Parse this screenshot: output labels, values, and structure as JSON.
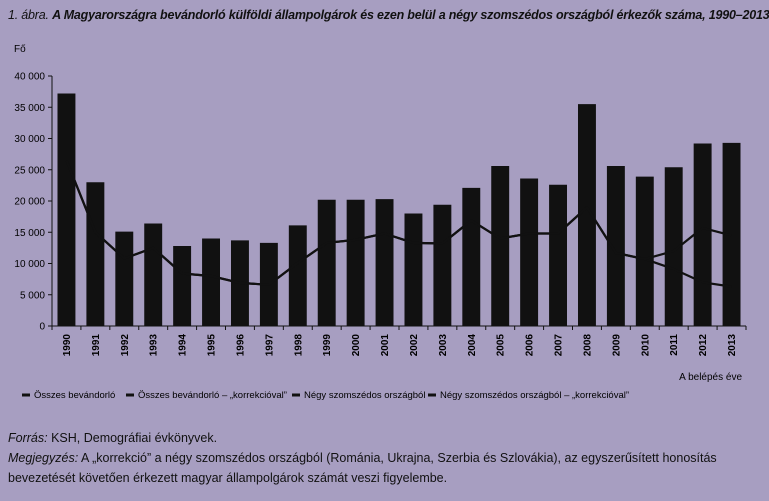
{
  "title": {
    "number": "1. ábra.",
    "text": "A Magyarországra bevándorló külföldi állampolgárok és ezen belül a négy szomszédos országból érkezők száma, 1990–2013"
  },
  "notes": {
    "source_label": "Forrás:",
    "source_text": " KSH, Demográfiai évkönyvek.",
    "note_label": "Megjegyzés:",
    "note_text": " A „korrekció” a négy szomszédos országból (Románia, Ukrajna, Szerbia és Szlovákia), az egyszerűsített honosítás bevezetését követően érkezett magyar állampolgárok számát veszi figyelembe."
  },
  "colors": {
    "background": "#a79ec1",
    "bar": "#111111",
    "line": "#111111"
  },
  "chart_data": {
    "type": "bar",
    "ylabel": "Fő",
    "xlabel": "A belépés éve",
    "ylim": [
      0,
      40000
    ],
    "yticks": [
      0,
      5000,
      10000,
      15000,
      20000,
      25000,
      30000,
      35000,
      40000
    ],
    "ytick_labels": [
      "0",
      "5 000",
      "10 000",
      "15 000",
      "20 000",
      "25 000",
      "30 000",
      "35 000",
      "40 000"
    ],
    "grid": false,
    "legend_position": "bottom",
    "categories": [
      "1990",
      "1991",
      "1992",
      "1993",
      "1994",
      "1995",
      "1996",
      "1997",
      "1998",
      "1999",
      "2000",
      "2001",
      "2002",
      "2003",
      "2004",
      "2005",
      "2006",
      "2007",
      "2008",
      "2009",
      "2010",
      "2011",
      "2012",
      "2013"
    ],
    "series": [
      {
        "name": "Összes bevándorló",
        "kind": "bar",
        "values": [
          37200,
          23000,
          15100,
          16400,
          12800,
          14000,
          13700,
          13300,
          16100,
          20200,
          20200,
          20300,
          18000,
          19400,
          22100,
          25600,
          23600,
          22600,
          35500,
          25600,
          23900,
          25400,
          29200,
          29300
        ]
      },
      {
        "name": "Összes bevándorló – „korrekcióval”",
        "kind": "bar",
        "values": [
          37200,
          23000,
          15100,
          16400,
          12800,
          14000,
          13700,
          13300,
          16100,
          20200,
          20200,
          20300,
          18000,
          19400,
          22100,
          25600,
          23600,
          22600,
          35500,
          25600,
          23900,
          25400,
          29200,
          29300
        ]
      },
      {
        "name": "Négy szomszédos országból",
        "kind": "line",
        "values": [
          26500,
          15000,
          10800,
          12500,
          8400,
          8000,
          6900,
          6600,
          10100,
          13300,
          13800,
          14800,
          13300,
          13200,
          16900,
          14000,
          14800,
          14800,
          19000,
          11700,
          10700,
          9100,
          7000,
          6300
        ]
      },
      {
        "name": "Négy szomszédos országból – „korrekcióval”",
        "kind": "line",
        "values": [
          26500,
          15000,
          10800,
          12500,
          8400,
          8000,
          6900,
          6600,
          10100,
          13300,
          13800,
          14800,
          13300,
          13200,
          16900,
          14000,
          14800,
          14800,
          19000,
          11700,
          10700,
          12000,
          15700,
          14500
        ]
      }
    ]
  }
}
